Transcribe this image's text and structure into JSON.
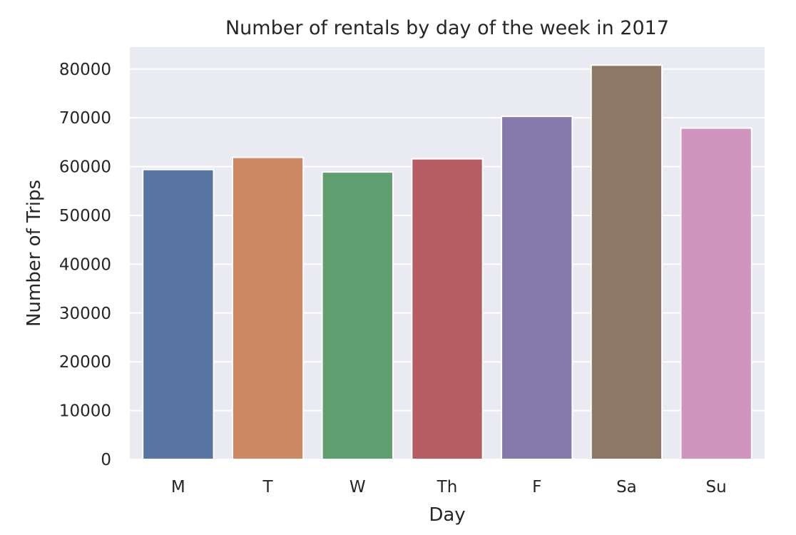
{
  "chart_data": {
    "type": "bar",
    "title": "Number of rentals by day of the week in 2017",
    "xlabel": "Day",
    "ylabel": "Number of Trips",
    "categories": [
      "M",
      "T",
      "W",
      "Th",
      "F",
      "Sa",
      "Su"
    ],
    "values": [
      59400,
      61900,
      58900,
      61600,
      70300,
      80800,
      67900
    ],
    "ylim": [
      0,
      84500
    ],
    "yticks": [
      0,
      10000,
      20000,
      30000,
      40000,
      50000,
      60000,
      70000,
      80000
    ],
    "ytick_labels": [
      "0",
      "10000",
      "20000",
      "30000",
      "40000",
      "50000",
      "60000",
      "70000",
      "80000"
    ],
    "grid": true,
    "legend": "none",
    "colors": [
      "#5975a4",
      "#cc8963",
      "#5f9e6e",
      "#b55d60",
      "#857aab",
      "#8d7866",
      "#d095bf"
    ],
    "background": "#eaeaf2",
    "gridline_color": "#ffffff",
    "text_color": "#262626"
  }
}
